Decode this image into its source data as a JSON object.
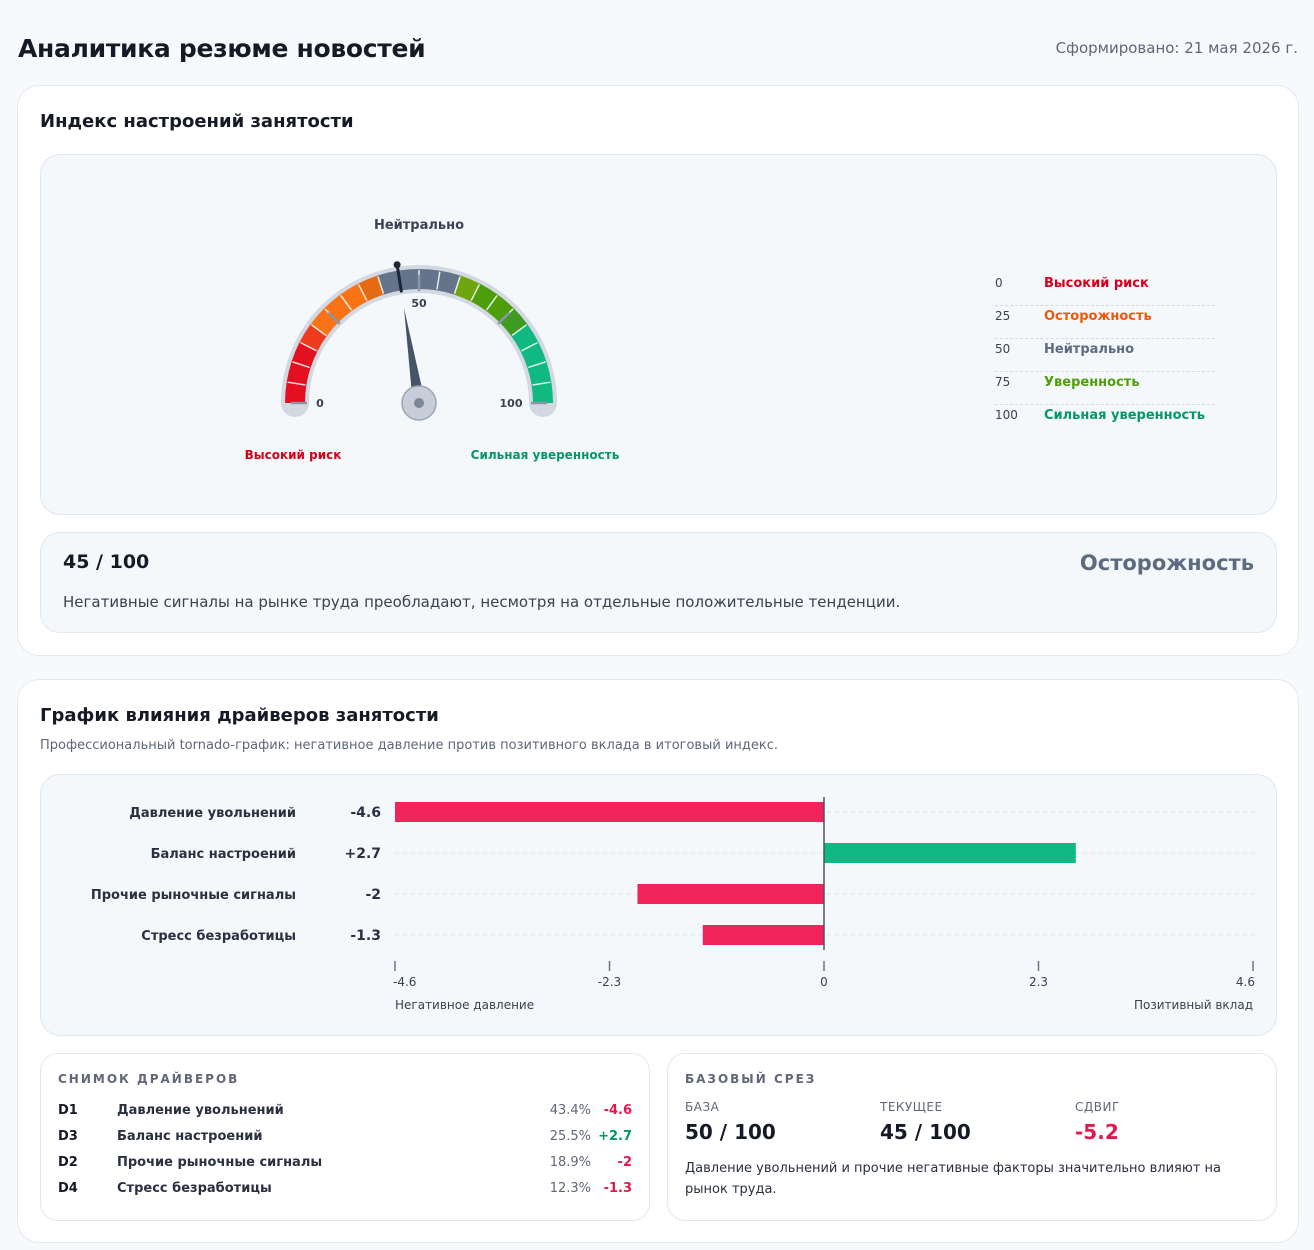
{
  "header": {
    "title": "Аналитика резюме новостей",
    "generated": "Сформировано: 21 мая 2026 г."
  },
  "sentiment": {
    "title": "Индекс настроений занятости",
    "gauge": {
      "value": 45,
      "min": 0,
      "max": 100,
      "top_label": "Нейтрально",
      "tick_min": "0",
      "tick_mid": "50",
      "tick_max": "100",
      "left_caption": "Высокий риск",
      "right_caption": "Сильная уверенность"
    },
    "legend": [
      {
        "value": "0",
        "label": "Высокий риск",
        "color": "#d7001c"
      },
      {
        "value": "25",
        "label": "Осторожность",
        "color": "#ea5a0c"
      },
      {
        "value": "50",
        "label": "Нейтрально",
        "color": "#5d6b80"
      },
      {
        "value": "75",
        "label": "Уверенность",
        "color": "#4d9e0a"
      },
      {
        "value": "100",
        "label": "Сильная уверенность",
        "color": "#059669"
      }
    ],
    "score": {
      "text": "45 / 100",
      "status": "Осторожность",
      "description": "Негативные сигналы на рынке труда преобладают, несмотря на отдельные положительные тенденции."
    }
  },
  "drivers": {
    "title": "График влияния драйверов занятости",
    "subtitle": "Профессиональный tornado-график: негативное давление против позитивного вклада в итоговый индекс.",
    "neg_caption": "Негативное давление",
    "pos_caption": "Позитивный вклад",
    "colors": {
      "negative": "#f0245a",
      "positive": "#10b981"
    }
  },
  "chart_data": {
    "type": "bar",
    "orientation": "horizontal",
    "categories": [
      "Давление увольнений",
      "Баланс настроений",
      "Прочие рыночные сигналы",
      "Стресс безработицы"
    ],
    "values": [
      -4.6,
      2.7,
      -2,
      -1.3
    ],
    "value_labels": [
      "-4.6",
      "+2.7",
      "-2",
      "-1.3"
    ],
    "xlim": [
      -4.6,
      4.6
    ],
    "xticks": [
      "-4.6",
      "-2.3",
      "0",
      "2.3",
      "4.6"
    ],
    "xtick_values": [
      -4.6,
      -2.3,
      0,
      2.3,
      4.6
    ],
    "grid": true
  },
  "snapshot": {
    "title": "СНИМОК ДРАЙВЕРОВ",
    "rows": [
      {
        "code": "D1",
        "name": "Давление увольнений",
        "pct": "43.4%",
        "value": "-4.6",
        "sign": "neg"
      },
      {
        "code": "D3",
        "name": "Баланс настроений",
        "pct": "25.5%",
        "value": "+2.7",
        "sign": "pos"
      },
      {
        "code": "D2",
        "name": "Прочие рыночные сигналы",
        "pct": "18.9%",
        "value": "-2",
        "sign": "neg"
      },
      {
        "code": "D4",
        "name": "Стресс безработицы",
        "pct": "12.3%",
        "value": "-1.3",
        "sign": "neg"
      }
    ]
  },
  "baseline": {
    "title": "БАЗОВЫЙ СРЕЗ",
    "base_label": "БАЗА",
    "base_value": "50 / 100",
    "current_label": "ТЕКУЩЕЕ",
    "current_value": "45 / 100",
    "shift_label": "СДВИГ",
    "shift_value": "-5.2",
    "note": "Давление увольнений и прочие негативные факторы значительно влияют на рынок труда."
  }
}
